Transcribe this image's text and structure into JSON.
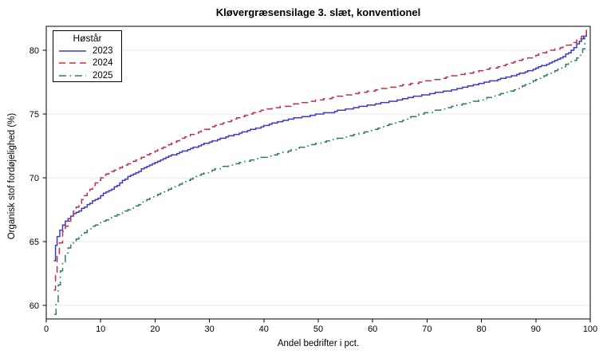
{
  "chart_data": {
    "type": "line",
    "title": "Kløvergræsensilage 3. slæt, konventionel",
    "xlabel": "Andel bedrifter i pct.",
    "ylabel": "Organisk stof fordøjelighed (%)",
    "xlim": [
      0,
      100
    ],
    "ylim": [
      58.9,
      81.9
    ],
    "x_ticks": [
      0,
      10,
      20,
      30,
      40,
      50,
      60,
      70,
      80,
      90,
      100
    ],
    "y_ticks": [
      60,
      65,
      70,
      75,
      80
    ],
    "grid": "horizontal",
    "grid_color": "#e9e9e9",
    "frame_color": "#000000",
    "legend": {
      "title": "Høstår",
      "position": "top-left"
    },
    "series": [
      {
        "name": "2023",
        "color": "#3a3ac2",
        "dash": "solid",
        "points": [
          [
            1.4,
            63.5
          ],
          [
            1.7,
            64.7
          ],
          [
            2,
            65.4
          ],
          [
            2.5,
            65.9
          ],
          [
            3,
            66.3
          ],
          [
            4,
            66.8
          ],
          [
            5,
            67.2
          ],
          [
            6,
            67.4
          ],
          [
            7,
            67.7
          ],
          [
            8,
            68.0
          ],
          [
            9,
            68.3
          ],
          [
            10,
            68.6
          ],
          [
            11,
            68.9
          ],
          [
            12,
            69.1
          ],
          [
            13,
            69.4
          ],
          [
            14,
            69.8
          ],
          [
            15,
            70.1
          ],
          [
            16,
            70.3
          ],
          [
            17,
            70.5
          ],
          [
            18,
            70.8
          ],
          [
            19,
            71.0
          ],
          [
            20,
            71.2
          ],
          [
            22,
            71.6
          ],
          [
            24,
            71.9
          ],
          [
            26,
            72.2
          ],
          [
            28,
            72.5
          ],
          [
            30,
            72.8
          ],
          [
            32,
            73.1
          ],
          [
            34,
            73.3
          ],
          [
            36,
            73.6
          ],
          [
            38,
            73.8
          ],
          [
            40,
            74.1
          ],
          [
            42,
            74.3
          ],
          [
            44,
            74.5
          ],
          [
            46,
            74.7
          ],
          [
            48,
            74.8
          ],
          [
            50,
            75.0
          ],
          [
            52,
            75.1
          ],
          [
            54,
            75.3
          ],
          [
            56,
            75.4
          ],
          [
            58,
            75.6
          ],
          [
            60,
            75.7
          ],
          [
            62,
            75.9
          ],
          [
            64,
            76.0
          ],
          [
            66,
            76.2
          ],
          [
            68,
            76.4
          ],
          [
            70,
            76.5
          ],
          [
            72,
            76.7
          ],
          [
            74,
            76.8
          ],
          [
            76,
            77.0
          ],
          [
            78,
            77.2
          ],
          [
            80,
            77.4
          ],
          [
            82,
            77.6
          ],
          [
            84,
            77.8
          ],
          [
            86,
            78.0
          ],
          [
            88,
            78.3
          ],
          [
            90,
            78.6
          ],
          [
            92,
            78.9
          ],
          [
            94,
            79.3
          ],
          [
            95,
            79.5
          ],
          [
            96,
            79.8
          ],
          [
            97,
            80.2
          ],
          [
            98,
            80.7
          ],
          [
            98.8,
            81.1
          ],
          [
            99.3,
            81.5
          ]
        ]
      },
      {
        "name": "2024",
        "color": "#b83248",
        "dash": "dashed",
        "points": [
          [
            1.4,
            61.2
          ],
          [
            1.7,
            62.6
          ],
          [
            2,
            63.9
          ],
          [
            2.4,
            64.9
          ],
          [
            3,
            65.8
          ],
          [
            4,
            66.6
          ],
          [
            5,
            67.4
          ],
          [
            6,
            68.0
          ],
          [
            7,
            68.6
          ],
          [
            8,
            69.1
          ],
          [
            9,
            69.6
          ],
          [
            10,
            70.0
          ],
          [
            11,
            70.3
          ],
          [
            12,
            70.5
          ],
          [
            13,
            70.7
          ],
          [
            14,
            70.9
          ],
          [
            15,
            71.1
          ],
          [
            16,
            71.3
          ],
          [
            17,
            71.5
          ],
          [
            18,
            71.7
          ],
          [
            19,
            71.9
          ],
          [
            20,
            72.1
          ],
          [
            22,
            72.5
          ],
          [
            24,
            72.9
          ],
          [
            26,
            73.3
          ],
          [
            28,
            73.6
          ],
          [
            30,
            73.9
          ],
          [
            32,
            74.2
          ],
          [
            34,
            74.5
          ],
          [
            36,
            74.8
          ],
          [
            38,
            75.1
          ],
          [
            40,
            75.3
          ],
          [
            42,
            75.5
          ],
          [
            44,
            75.6
          ],
          [
            46,
            75.8
          ],
          [
            48,
            75.9
          ],
          [
            50,
            76.1
          ],
          [
            52,
            76.2
          ],
          [
            54,
            76.4
          ],
          [
            56,
            76.5
          ],
          [
            58,
            76.7
          ],
          [
            60,
            76.8
          ],
          [
            62,
            77.0
          ],
          [
            64,
            77.1
          ],
          [
            66,
            77.3
          ],
          [
            68,
            77.4
          ],
          [
            70,
            77.6
          ],
          [
            72,
            77.7
          ],
          [
            74,
            77.9
          ],
          [
            76,
            78.1
          ],
          [
            78,
            78.2
          ],
          [
            80,
            78.4
          ],
          [
            82,
            78.6
          ],
          [
            84,
            78.8
          ],
          [
            86,
            79.1
          ],
          [
            88,
            79.3
          ],
          [
            90,
            79.6
          ],
          [
            92,
            79.9
          ],
          [
            94,
            80.1
          ],
          [
            95,
            80.3
          ],
          [
            96,
            80.4
          ],
          [
            97,
            80.6
          ],
          [
            98,
            80.9
          ],
          [
            98.8,
            81.2
          ],
          [
            99.3,
            81.6
          ]
        ]
      },
      {
        "name": "2025",
        "color": "#2b7b6b",
        "dash": "dash-dot",
        "points": [
          [
            1.5,
            59.3
          ],
          [
            1.8,
            60.3
          ],
          [
            2.2,
            61.6
          ],
          [
            2.6,
            62.7
          ],
          [
            3,
            63.4
          ],
          [
            3.5,
            64.1
          ],
          [
            4,
            64.5
          ],
          [
            5,
            65.0
          ],
          [
            6,
            65.4
          ],
          [
            7,
            65.7
          ],
          [
            8,
            66.0
          ],
          [
            9,
            66.3
          ],
          [
            10,
            66.5
          ],
          [
            11,
            66.7
          ],
          [
            12,
            66.9
          ],
          [
            13,
            67.1
          ],
          [
            14,
            67.3
          ],
          [
            15,
            67.5
          ],
          [
            16,
            67.7
          ],
          [
            17,
            67.9
          ],
          [
            18,
            68.2
          ],
          [
            19,
            68.4
          ],
          [
            20,
            68.6
          ],
          [
            22,
            69.0
          ],
          [
            24,
            69.4
          ],
          [
            26,
            69.8
          ],
          [
            28,
            70.2
          ],
          [
            30,
            70.5
          ],
          [
            32,
            70.8
          ],
          [
            34,
            71.0
          ],
          [
            36,
            71.2
          ],
          [
            38,
            71.4
          ],
          [
            40,
            71.6
          ],
          [
            42,
            71.8
          ],
          [
            44,
            72.0
          ],
          [
            46,
            72.3
          ],
          [
            48,
            72.5
          ],
          [
            50,
            72.7
          ],
          [
            52,
            72.9
          ],
          [
            54,
            73.1
          ],
          [
            56,
            73.3
          ],
          [
            58,
            73.5
          ],
          [
            60,
            73.7
          ],
          [
            62,
            74.0
          ],
          [
            64,
            74.3
          ],
          [
            66,
            74.6
          ],
          [
            68,
            74.9
          ],
          [
            70,
            75.1
          ],
          [
            72,
            75.3
          ],
          [
            74,
            75.5
          ],
          [
            76,
            75.7
          ],
          [
            78,
            75.9
          ],
          [
            80,
            76.1
          ],
          [
            82,
            76.4
          ],
          [
            84,
            76.6
          ],
          [
            86,
            76.9
          ],
          [
            88,
            77.3
          ],
          [
            90,
            77.7
          ],
          [
            92,
            78.1
          ],
          [
            94,
            78.5
          ],
          [
            95,
            78.7
          ],
          [
            96,
            79.0
          ],
          [
            97,
            79.2
          ],
          [
            98,
            79.6
          ],
          [
            98.6,
            80.1
          ],
          [
            99,
            81.0
          ]
        ]
      }
    ]
  }
}
